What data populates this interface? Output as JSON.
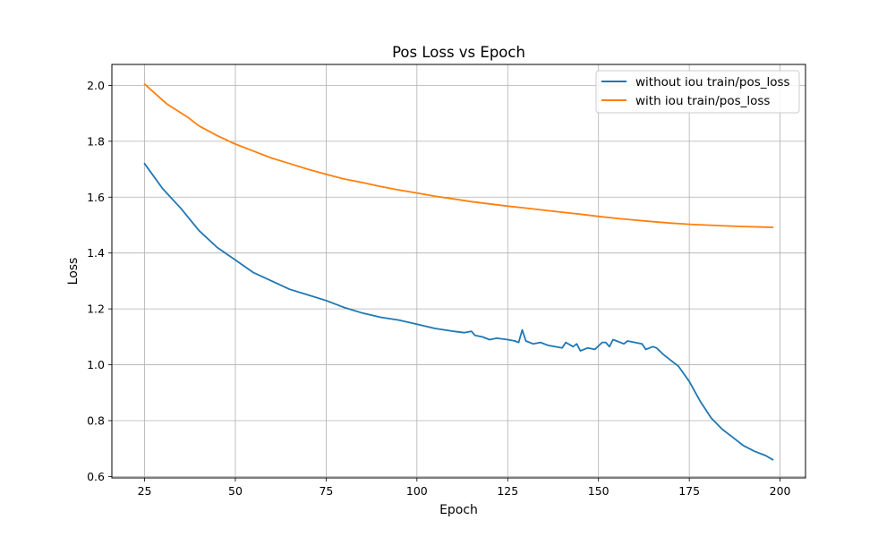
{
  "chart_data": {
    "type": "line",
    "title": "Pos Loss vs Epoch",
    "xlabel": "Epoch",
    "ylabel": "Loss",
    "xlim": [
      16,
      207
    ],
    "ylim": [
      0.595,
      2.075
    ],
    "xticks": [
      25,
      50,
      75,
      100,
      125,
      150,
      175,
      200
    ],
    "yticks": [
      0.6,
      0.8,
      1.0,
      1.2,
      1.4,
      1.6,
      1.8,
      2.0
    ],
    "grid": true,
    "legend_position": "top-right",
    "series": [
      {
        "name": "without iou train/pos_loss",
        "color": "#1f77b4",
        "points": [
          [
            25,
            1.72
          ],
          [
            30,
            1.63
          ],
          [
            35,
            1.56
          ],
          [
            40,
            1.48
          ],
          [
            45,
            1.42
          ],
          [
            50,
            1.375
          ],
          [
            55,
            1.33
          ],
          [
            60,
            1.3
          ],
          [
            65,
            1.27
          ],
          [
            70,
            1.25
          ],
          [
            75,
            1.23
          ],
          [
            80,
            1.205
          ],
          [
            85,
            1.185
          ],
          [
            90,
            1.17
          ],
          [
            95,
            1.16
          ],
          [
            100,
            1.145
          ],
          [
            105,
            1.13
          ],
          [
            110,
            1.12
          ],
          [
            113,
            1.115
          ],
          [
            115,
            1.12
          ],
          [
            116,
            1.105
          ],
          [
            118,
            1.1
          ],
          [
            120,
            1.09
          ],
          [
            122,
            1.095
          ],
          [
            125,
            1.09
          ],
          [
            127,
            1.085
          ],
          [
            128,
            1.08
          ],
          [
            129,
            1.125
          ],
          [
            130,
            1.085
          ],
          [
            132,
            1.075
          ],
          [
            134,
            1.08
          ],
          [
            136,
            1.07
          ],
          [
            138,
            1.065
          ],
          [
            140,
            1.06
          ],
          [
            141,
            1.08
          ],
          [
            143,
            1.065
          ],
          [
            144,
            1.075
          ],
          [
            145,
            1.05
          ],
          [
            147,
            1.06
          ],
          [
            149,
            1.055
          ],
          [
            151,
            1.08
          ],
          [
            152,
            1.08
          ],
          [
            153,
            1.065
          ],
          [
            154,
            1.09
          ],
          [
            155,
            1.085
          ],
          [
            157,
            1.075
          ],
          [
            158,
            1.085
          ],
          [
            160,
            1.08
          ],
          [
            162,
            1.075
          ],
          [
            163,
            1.055
          ],
          [
            165,
            1.065
          ],
          [
            166,
            1.06
          ],
          [
            168,
            1.035
          ],
          [
            170,
            1.015
          ],
          [
            172,
            0.995
          ],
          [
            175,
            0.94
          ],
          [
            178,
            0.87
          ],
          [
            181,
            0.81
          ],
          [
            184,
            0.77
          ],
          [
            187,
            0.74
          ],
          [
            190,
            0.71
          ],
          [
            193,
            0.69
          ],
          [
            196,
            0.675
          ],
          [
            198,
            0.66
          ]
        ]
      },
      {
        "name": "with iou train/pos_loss",
        "color": "#ff7f0e",
        "points": [
          [
            25,
            2.005
          ],
          [
            28,
            1.97
          ],
          [
            31,
            1.935
          ],
          [
            34,
            1.91
          ],
          [
            37,
            1.885
          ],
          [
            40,
            1.855
          ],
          [
            45,
            1.82
          ],
          [
            50,
            1.79
          ],
          [
            55,
            1.765
          ],
          [
            60,
            1.74
          ],
          [
            65,
            1.72
          ],
          [
            70,
            1.7
          ],
          [
            75,
            1.682
          ],
          [
            80,
            1.665
          ],
          [
            85,
            1.652
          ],
          [
            90,
            1.638
          ],
          [
            95,
            1.626
          ],
          [
            100,
            1.615
          ],
          [
            105,
            1.603
          ],
          [
            110,
            1.594
          ],
          [
            115,
            1.584
          ],
          [
            120,
            1.576
          ],
          [
            125,
            1.568
          ],
          [
            130,
            1.561
          ],
          [
            135,
            1.553
          ],
          [
            140,
            1.546
          ],
          [
            145,
            1.539
          ],
          [
            150,
            1.531
          ],
          [
            155,
            1.524
          ],
          [
            160,
            1.518
          ],
          [
            165,
            1.512
          ],
          [
            170,
            1.507
          ],
          [
            175,
            1.503
          ],
          [
            180,
            1.5
          ],
          [
            185,
            1.497
          ],
          [
            190,
            1.495
          ],
          [
            195,
            1.493
          ],
          [
            198,
            1.492
          ]
        ]
      }
    ]
  }
}
